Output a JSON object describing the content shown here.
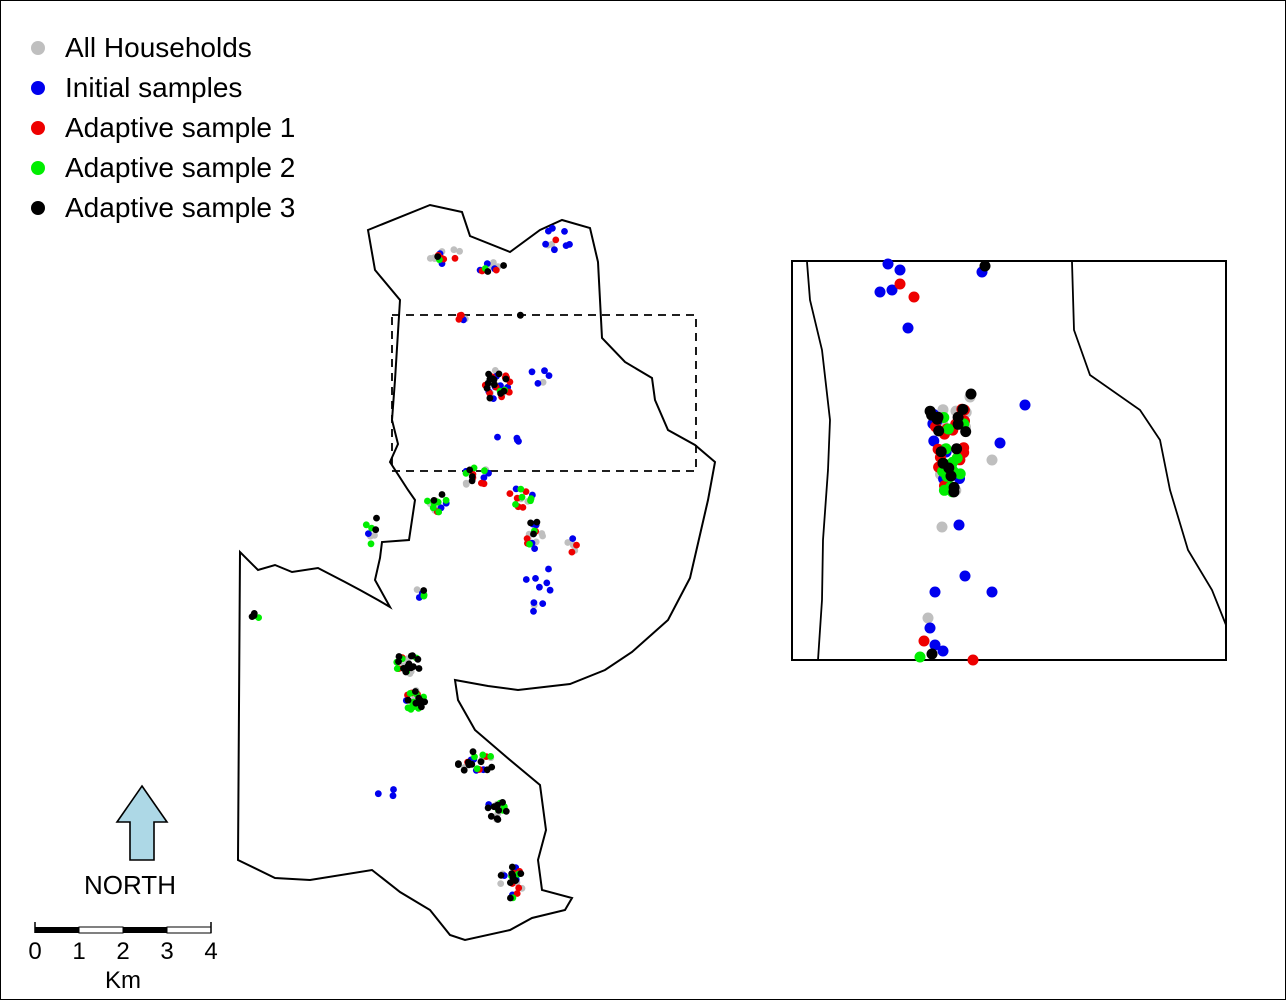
{
  "legend": {
    "items": [
      {
        "label": "All Households",
        "color": "#bfbfbf"
      },
      {
        "label": "Initial samples",
        "color": "#0000ee"
      },
      {
        "label": "Adaptive sample 1",
        "color": "#ee0000"
      },
      {
        "label": "Adaptive sample 2",
        "color": "#00ee00"
      },
      {
        "label": "Adaptive sample 3",
        "color": "#000000"
      }
    ]
  },
  "north_arrow": {
    "label": "NORTH",
    "icon": "north-arrow-icon",
    "color": "#add8e6"
  },
  "scale_bar": {
    "ticks": [
      "0",
      "1",
      "2",
      "3",
      "4"
    ],
    "unit": "Km"
  },
  "colors": {
    "all": "#bfbfbf",
    "initial": "#0000ee",
    "adaptive1": "#ee0000",
    "adaptive2": "#00ee00",
    "adaptive3": "#000000",
    "arrow": "#add8e6"
  }
}
